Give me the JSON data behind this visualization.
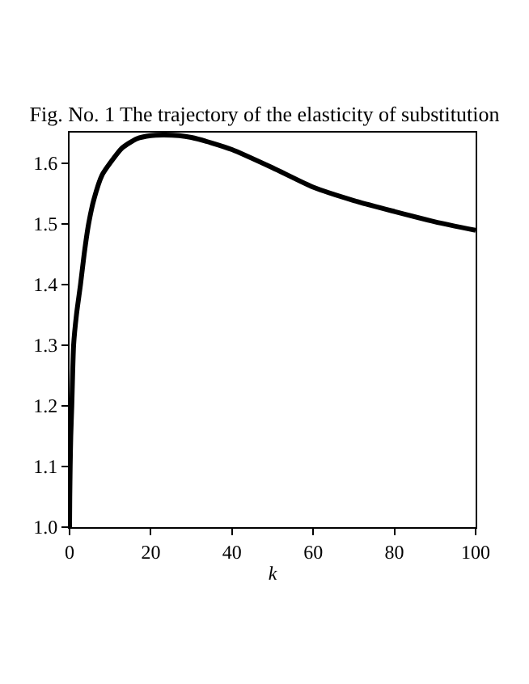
{
  "chart_data": {
    "type": "line",
    "title": "Fig. No. 1 The trajectory of the elasticity of substitution",
    "xlabel": "k",
    "x": [
      0,
      0.05,
      0.15,
      0.3,
      0.55,
      1,
      1.7,
      2.7,
      3.6,
      4.7,
      6,
      8,
      10,
      13,
      16.6,
      20,
      23,
      27,
      30,
      35,
      40,
      50,
      60,
      70,
      80,
      90,
      100
    ],
    "series": [
      {
        "color": "#000000",
        "values": [
          1.0,
          1.05,
          1.1,
          1.15,
          1.2,
          1.3,
          1.35,
          1.4,
          1.45,
          1.5,
          1.54,
          1.58,
          1.6,
          1.625,
          1.64,
          1.645,
          1.646,
          1.645,
          1.642,
          1.633,
          1.622,
          1.592,
          1.56,
          1.538,
          1.52,
          1.503,
          1.489
        ]
      }
    ],
    "xlim": [
      0,
      100
    ],
    "xticks": [
      0,
      20,
      40,
      60,
      80,
      100
    ],
    "ylim": [
      1.0,
      1.65
    ],
    "yticks": [
      {
        "value": 1.0,
        "label": "1.0"
      },
      1.1,
      1.2,
      1.3,
      1.4,
      1.5,
      1.6
    ],
    "marker": "none",
    "line_style": "solid"
  }
}
